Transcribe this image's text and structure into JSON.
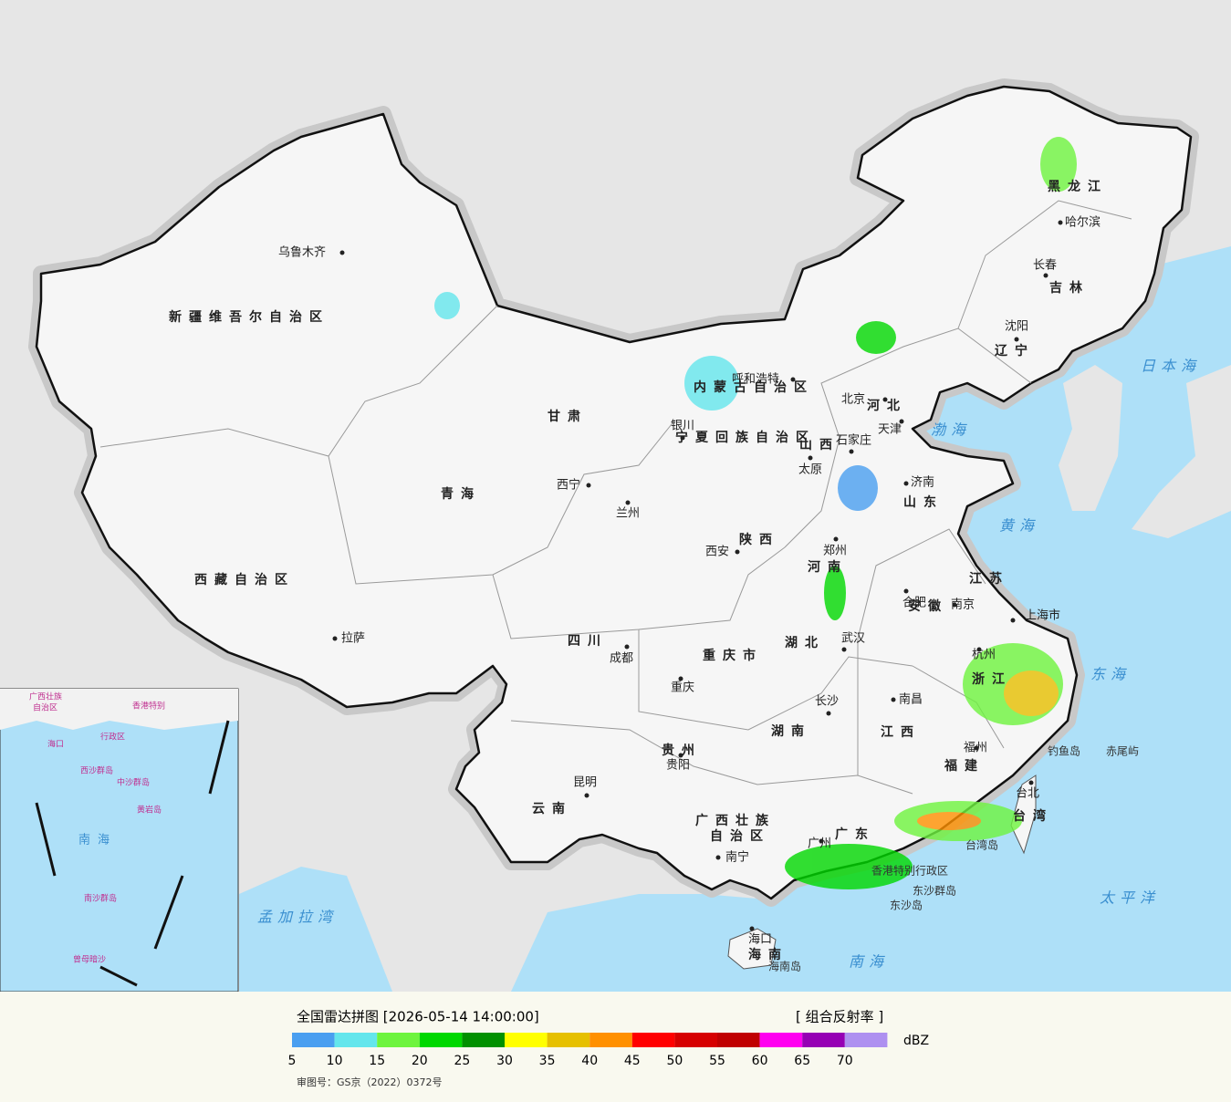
{
  "map": {
    "cities": [
      "乌鲁木齐",
      "拉萨",
      "西宁",
      "兰州",
      "银川",
      "呼和浩特",
      "北京",
      "天津",
      "石家庄",
      "太原",
      "济南",
      "郑州",
      "西安",
      "合肥",
      "南京",
      "上海市",
      "武汉",
      "成都",
      "重庆",
      "长沙",
      "南昌",
      "杭州",
      "福州",
      "贵阳",
      "昆明",
      "南宁",
      "广州",
      "海口",
      "台北",
      "沈阳",
      "长春",
      "哈尔滨"
    ],
    "provinces": [
      "新疆维吾尔自治区",
      "西藏自治区",
      "青海",
      "甘肃",
      "内蒙古自治区",
      "宁夏回族自治区",
      "陕西",
      "山西",
      "河北",
      "山东",
      "河南",
      "江苏",
      "安徽",
      "湖北",
      "四川",
      "重庆市",
      "贵州",
      "云南",
      "湖南",
      "江西",
      "浙江",
      "福建",
      "广东",
      "广西壮族",
      "自治区",
      "海南",
      "台湾",
      "辽宁",
      "吉林",
      "黑龙江"
    ],
    "seas": [
      "渤海",
      "黄海",
      "日本海",
      "东海",
      "太平洋",
      "南海",
      "孟加拉湾"
    ],
    "islands": [
      "钓鱼岛",
      "赤尾屿",
      "台湾岛",
      "东沙群岛",
      "东沙岛",
      "海南岛",
      "香港特别行政区"
    ],
    "inset": [
      "广西壮族",
      "自治区",
      "香港特别",
      "行政区",
      "海口",
      "西沙群岛",
      "中沙群岛",
      "黄岩岛",
      "南海",
      "南沙群岛",
      "曾母暗沙"
    ]
  },
  "legend": {
    "title": "全国雷达拼图 [2026-05-14 14:00:00]",
    "product": "[ 组合反射率 ]",
    "unit": "dBZ",
    "colors": [
      "#4a9ff0",
      "#64e6ec",
      "#6ef43e",
      "#00d800",
      "#019000",
      "#ffff00",
      "#e6c000",
      "#ff9000",
      "#ff0000",
      "#d60000",
      "#c00000",
      "#ff00f0",
      "#9600b4",
      "#ae90f0"
    ],
    "ticks": [
      5,
      10,
      15,
      20,
      25,
      30,
      35,
      40,
      45,
      50,
      55,
      60,
      65,
      70
    ]
  },
  "approval": "审图号：GS京（2022）0372号"
}
